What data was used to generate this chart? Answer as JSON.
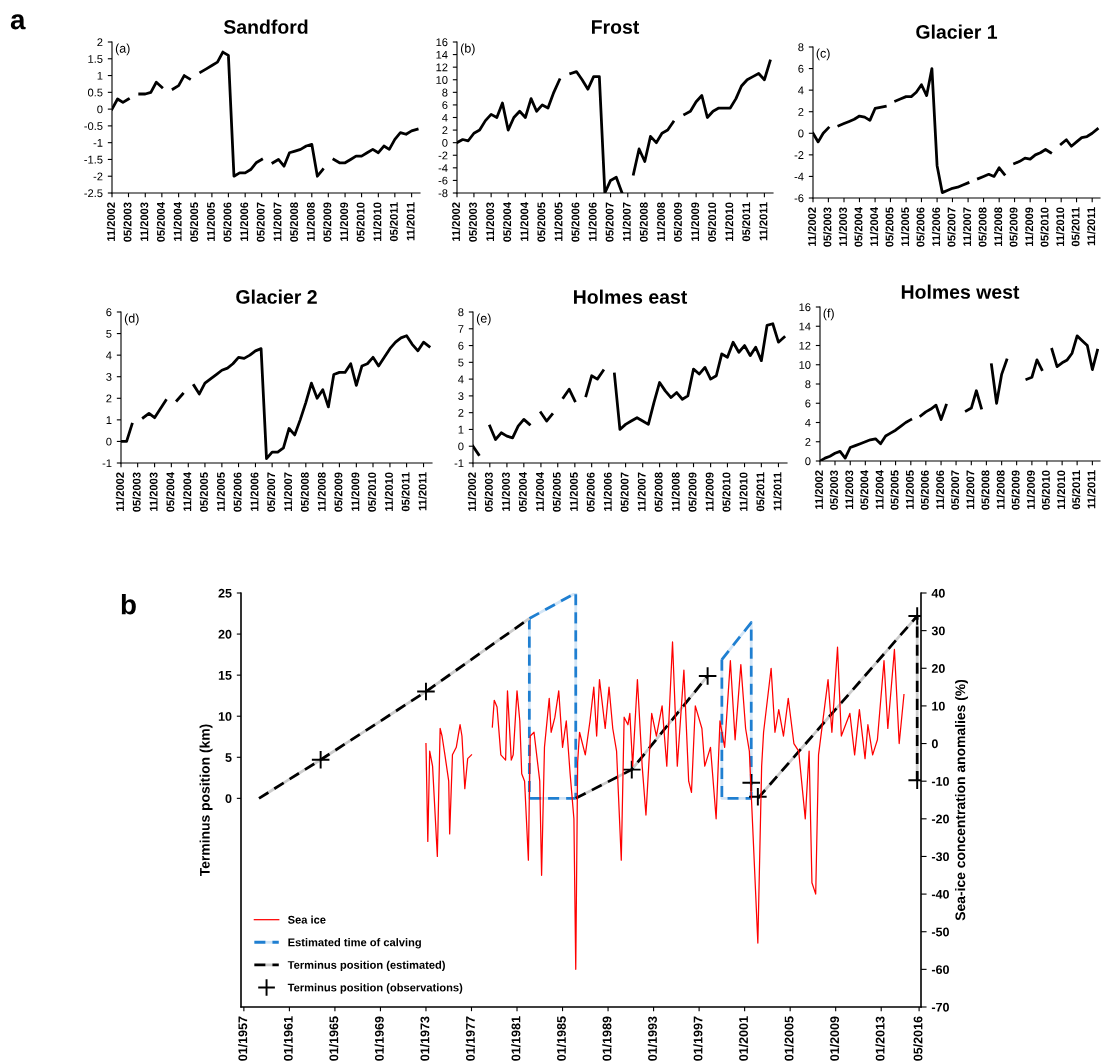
{
  "chart_data": [
    {
      "type": "line",
      "title": "Sandford",
      "annotations": [
        "(a)",
        "a"
      ],
      "xlim": [
        "2002-11",
        "2012-02"
      ],
      "ylim": [
        -2.5,
        2
      ],
      "yticks": [
        -2.5,
        -2,
        -1.5,
        -1,
        -0.5,
        0,
        0.5,
        1,
        1.5,
        2
      ],
      "xticks": [
        {
          "value": "2002-11",
          "label": "11/2002"
        },
        {
          "value": "2003-05",
          "label": "05/2003"
        },
        {
          "value": "2003-11",
          "label": "11/2003"
        },
        {
          "value": "2004-05",
          "label": "05/2004"
        },
        {
          "value": "2004-11",
          "label": "11/2004"
        },
        {
          "value": "2005-05",
          "label": "05/2005"
        },
        {
          "value": "2005-11",
          "label": "11/2005"
        },
        {
          "value": "2006-05",
          "label": "05/2006"
        },
        {
          "value": "2006-11",
          "label": "11/2006"
        },
        {
          "value": "2007-05",
          "label": "05/2007"
        },
        {
          "value": "2007-11",
          "label": "11/2007"
        },
        {
          "value": "2008-05",
          "label": "05/2008"
        },
        {
          "value": "2008-11",
          "label": "11/2008"
        },
        {
          "value": "2009-05",
          "label": "05/2009"
        },
        {
          "value": "2009-11",
          "label": "11/2009"
        },
        {
          "value": "2010-05",
          "label": "05/2010"
        },
        {
          "value": "2010-11",
          "label": "11/2010"
        },
        {
          "value": "2011-05",
          "label": "05/2011"
        },
        {
          "value": "2011-11",
          "label": "11/2011"
        }
      ],
      "x": [
        "2002-11",
        "2003-01",
        "2003-03",
        "2003-05",
        "2003-07",
        "2003-09",
        "2003-11",
        "2004-01",
        "2004-03",
        "2004-05",
        "2004-07",
        "2004-09",
        "2004-11",
        "2005-01",
        "2005-03",
        "2005-05",
        "2005-07",
        "2005-09",
        "2005-11",
        "2006-01",
        "2006-03",
        "2006-05",
        "2006-07",
        "2006-09",
        "2006-11",
        "2007-01",
        "2007-03",
        "2007-05",
        "2007-07",
        "2007-09",
        "2007-11",
        "2008-01",
        "2008-03",
        "2008-05",
        "2008-07",
        "2008-09",
        "2008-11",
        "2009-01",
        "2009-03",
        "2009-05",
        "2009-07",
        "2009-09",
        "2009-11",
        "2010-01",
        "2010-03",
        "2010-05",
        "2010-07",
        "2010-09",
        "2010-11",
        "2011-01",
        "2011-03",
        "2011-05",
        "2011-07",
        "2011-09",
        "2011-11",
        "2012-01"
      ],
      "series": [
        {
          "color": "#000000",
          "values": [
            0,
            0.3,
            0.2,
            0.3,
            null,
            0.45,
            0.45,
            0.5,
            0.8,
            0.65,
            null,
            0.6,
            0.7,
            1.0,
            0.9,
            null,
            1.1,
            1.2,
            1.3,
            1.4,
            1.7,
            1.6,
            -2.0,
            -1.9,
            -1.9,
            -1.8,
            -1.6,
            -1.5,
            null,
            -1.6,
            -1.5,
            -1.7,
            -1.3,
            -1.25,
            -1.2,
            -1.1,
            -1.05,
            -2.0,
            -1.8,
            null,
            -1.5,
            -1.6,
            -1.6,
            -1.5,
            -1.4,
            -1.4,
            -1.3,
            -1.2,
            -1.3,
            -1.1,
            -1.2,
            -0.9,
            -0.7,
            -0.75,
            -0.65,
            -0.6
          ]
        }
      ]
    },
    {
      "type": "line",
      "title": "Frost",
      "annotations": [
        "(b)"
      ],
      "xlim": [
        "2002-11",
        "2012-02"
      ],
      "ylim": [
        -8,
        16
      ],
      "yticks": [
        -8,
        -6,
        -4,
        -2,
        0,
        2,
        4,
        6,
        8,
        10,
        12,
        14,
        16
      ],
      "xticks": [
        {
          "value": "2002-11",
          "label": "11/2002"
        },
        {
          "value": "2003-05",
          "label": "05/2003"
        },
        {
          "value": "2003-11",
          "label": "11/2003"
        },
        {
          "value": "2004-05",
          "label": "05/2004"
        },
        {
          "value": "2004-11",
          "label": "11/2004"
        },
        {
          "value": "2005-05",
          "label": "05/2005"
        },
        {
          "value": "2005-11",
          "label": "11/2005"
        },
        {
          "value": "2006-05",
          "label": "05/2006"
        },
        {
          "value": "2006-11",
          "label": "11/2006"
        },
        {
          "value": "2007-05",
          "label": "05/2007"
        },
        {
          "value": "2007-11",
          "label": "11/2007"
        },
        {
          "value": "2008-05",
          "label": "05/2008"
        },
        {
          "value": "2008-11",
          "label": "11/2008"
        },
        {
          "value": "2009-05",
          "label": "05/2009"
        },
        {
          "value": "2009-11",
          "label": "11/2009"
        },
        {
          "value": "2010-05",
          "label": "05/2010"
        },
        {
          "value": "2010-11",
          "label": "11/2010"
        },
        {
          "value": "2011-05",
          "label": "05/2011"
        },
        {
          "value": "2011-11",
          "label": "11/2011"
        }
      ],
      "x": [
        "2002-11",
        "2003-01",
        "2003-03",
        "2003-05",
        "2003-07",
        "2003-09",
        "2003-11",
        "2004-01",
        "2004-03",
        "2004-05",
        "2004-07",
        "2004-09",
        "2004-11",
        "2005-01",
        "2005-03",
        "2005-05",
        "2005-07",
        "2005-09",
        "2005-11",
        "2006-01",
        "2006-03",
        "2006-05",
        "2006-07",
        "2006-09",
        "2006-11",
        "2007-01",
        "2007-03",
        "2007-05",
        "2007-07",
        "2007-09",
        "2007-11",
        "2008-01",
        "2008-03",
        "2008-05",
        "2008-07",
        "2008-09",
        "2008-11",
        "2009-01",
        "2009-03",
        "2009-05",
        "2009-07",
        "2009-09",
        "2009-11",
        "2010-01",
        "2010-03",
        "2010-05",
        "2010-07",
        "2010-09",
        "2010-11",
        "2011-01",
        "2011-03",
        "2011-05",
        "2011-07",
        "2011-09",
        "2011-11",
        "2012-01"
      ],
      "series": [
        {
          "color": "#000000",
          "values": [
            0,
            0.5,
            0.3,
            1.5,
            2,
            3.5,
            4.5,
            4,
            6.3,
            2,
            4,
            5,
            4,
            7,
            5,
            6,
            5.5,
            8,
            10,
            null,
            11,
            11.3,
            10,
            8.5,
            10.5,
            10.5,
            -8,
            -6,
            -5.5,
            -8,
            null,
            -5,
            -1,
            -3,
            1,
            0,
            1.5,
            2,
            3.3,
            null,
            4.5,
            5,
            6.5,
            7.5,
            4,
            5,
            5.5,
            5.5,
            5.5,
            7,
            9,
            10,
            10.5,
            11,
            10,
            13
          ]
        }
      ]
    },
    {
      "type": "line",
      "title": "Glacier 1",
      "annotations": [
        "(c)"
      ],
      "xlim": [
        "2002-11",
        "2012-02"
      ],
      "ylim": [
        -6,
        8
      ],
      "yticks": [
        -6,
        -4,
        -2,
        0,
        2,
        4,
        6,
        8
      ],
      "xticks": [
        {
          "value": "2002-11",
          "label": "11/2002"
        },
        {
          "value": "2003-05",
          "label": "05/2003"
        },
        {
          "value": "2003-11",
          "label": "11/2003"
        },
        {
          "value": "2004-05",
          "label": "05/2004"
        },
        {
          "value": "2004-11",
          "label": "11/2004"
        },
        {
          "value": "2005-05",
          "label": "05/2005"
        },
        {
          "value": "2005-11",
          "label": "11/2005"
        },
        {
          "value": "2006-05",
          "label": "05/2006"
        },
        {
          "value": "2006-11",
          "label": "11/2006"
        },
        {
          "value": "2007-05",
          "label": "05/2007"
        },
        {
          "value": "2007-11",
          "label": "11/2007"
        },
        {
          "value": "2008-05",
          "label": "05/2008"
        },
        {
          "value": "2008-11",
          "label": "11/2008"
        },
        {
          "value": "2009-05",
          "label": "05/2009"
        },
        {
          "value": "2009-11",
          "label": "11/2009"
        },
        {
          "value": "2010-05",
          "label": "05/2010"
        },
        {
          "value": "2010-11",
          "label": "11/2010"
        },
        {
          "value": "2011-05",
          "label": "05/2011"
        },
        {
          "value": "2011-11",
          "label": "11/2011"
        }
      ],
      "x": [
        "2002-11",
        "2003-01",
        "2003-03",
        "2003-05",
        "2003-07",
        "2003-09",
        "2003-11",
        "2004-01",
        "2004-03",
        "2004-05",
        "2004-07",
        "2004-09",
        "2004-11",
        "2005-01",
        "2005-03",
        "2005-05",
        "2005-07",
        "2005-09",
        "2005-11",
        "2006-01",
        "2006-03",
        "2006-05",
        "2006-07",
        "2006-09",
        "2006-11",
        "2007-01",
        "2007-03",
        "2007-05",
        "2007-07",
        "2007-09",
        "2007-11",
        "2008-01",
        "2008-03",
        "2008-05",
        "2008-07",
        "2008-09",
        "2008-11",
        "2009-01",
        "2009-03",
        "2009-05",
        "2009-07",
        "2009-09",
        "2009-11",
        "2010-01",
        "2010-03",
        "2010-05",
        "2010-07",
        "2010-09",
        "2010-11",
        "2011-01",
        "2011-03",
        "2011-05",
        "2011-07",
        "2011-09",
        "2011-11",
        "2012-01"
      ],
      "series": [
        {
          "color": "#000000",
          "values": [
            0,
            -0.8,
            0,
            0.5,
            null,
            0.7,
            0.9,
            1.1,
            1.3,
            1.6,
            1.5,
            1.2,
            2.3,
            2.4,
            2.5,
            null,
            3,
            3.2,
            3.4,
            3.4,
            3.8,
            4.5,
            3.5,
            6,
            -3,
            -5.5,
            -5.3,
            -5.1,
            -5,
            -4.8,
            -4.6,
            null,
            -4.2,
            -4,
            -3.8,
            -4,
            -3.2,
            -3.8,
            null,
            -2.8,
            -2.6,
            -2.3,
            -2.4,
            -2,
            -1.8,
            -1.5,
            -1.8,
            null,
            -1,
            -0.6,
            -1.2,
            -0.8,
            -0.4,
            -0.3,
            0,
            0.4
          ]
        }
      ]
    },
    {
      "type": "line",
      "title": "Glacier 2",
      "annotations": [
        "(d)"
      ],
      "xlim": [
        "2002-11",
        "2012-02"
      ],
      "ylim": [
        -1,
        6
      ],
      "yticks": [
        -1,
        0,
        1,
        2,
        3,
        4,
        5,
        6
      ],
      "xticks": [
        {
          "value": "2002-11",
          "label": "11/2002"
        },
        {
          "value": "2003-05",
          "label": "05/2003"
        },
        {
          "value": "2003-11",
          "label": "11/2003"
        },
        {
          "value": "2004-05",
          "label": "05/2004"
        },
        {
          "value": "2004-11",
          "label": "11/2004"
        },
        {
          "value": "2005-05",
          "label": "05/2005"
        },
        {
          "value": "2005-11",
          "label": "11/2005"
        },
        {
          "value": "2006-05",
          "label": "05/2006"
        },
        {
          "value": "2006-11",
          "label": "11/2006"
        },
        {
          "value": "2007-05",
          "label": "05/2007"
        },
        {
          "value": "2007-11",
          "label": "11/2007"
        },
        {
          "value": "2008-05",
          "label": "05/2008"
        },
        {
          "value": "2008-11",
          "label": "11/2008"
        },
        {
          "value": "2009-05",
          "label": "05/2009"
        },
        {
          "value": "2009-11",
          "label": "11/2009"
        },
        {
          "value": "2010-05",
          "label": "05/2010"
        },
        {
          "value": "2010-11",
          "label": "11/2010"
        },
        {
          "value": "2011-05",
          "label": "05/2011"
        },
        {
          "value": "2011-11",
          "label": "11/2011"
        }
      ],
      "x": [
        "2002-11",
        "2003-01",
        "2003-03",
        "2003-05",
        "2003-07",
        "2003-09",
        "2003-11",
        "2004-01",
        "2004-03",
        "2004-05",
        "2004-07",
        "2004-09",
        "2004-11",
        "2005-01",
        "2005-03",
        "2005-05",
        "2005-07",
        "2005-09",
        "2005-11",
        "2006-01",
        "2006-03",
        "2006-05",
        "2006-07",
        "2006-09",
        "2006-11",
        "2007-01",
        "2007-03",
        "2007-05",
        "2007-07",
        "2007-09",
        "2007-11",
        "2008-01",
        "2008-03",
        "2008-05",
        "2008-07",
        "2008-09",
        "2008-11",
        "2009-01",
        "2009-03",
        "2009-05",
        "2009-07",
        "2009-09",
        "2009-11",
        "2010-01",
        "2010-03",
        "2010-05",
        "2010-07",
        "2010-09",
        "2010-11",
        "2011-01",
        "2011-03",
        "2011-05",
        "2011-07",
        "2011-09",
        "2011-11",
        "2012-01"
      ],
      "series": [
        {
          "color": "#000000",
          "values": [
            0,
            0,
            0.8,
            null,
            1.1,
            1.3,
            1.1,
            1.5,
            1.9,
            null,
            1.9,
            2.2,
            null,
            2.6,
            2.2,
            2.7,
            2.9,
            3.1,
            3.3,
            3.4,
            3.6,
            3.9,
            3.85,
            4,
            4.2,
            4.3,
            -0.8,
            -0.5,
            -0.5,
            -0.3,
            0.6,
            0.3,
            1,
            1.8,
            2.7,
            2,
            2.4,
            1.6,
            3.1,
            3.2,
            3.2,
            3.6,
            2.6,
            3.5,
            3.6,
            3.9,
            3.5,
            3.9,
            4.3,
            4.6,
            4.8,
            4.9,
            4.5,
            4.2,
            4.6,
            4.4
          ]
        }
      ]
    },
    {
      "type": "line",
      "title": "Holmes east",
      "annotations": [
        "(e)"
      ],
      "xlim": [
        "2002-11",
        "2012-02"
      ],
      "ylim": [
        -1,
        8
      ],
      "yticks": [
        -1,
        0,
        1,
        2,
        3,
        4,
        5,
        6,
        7,
        8
      ],
      "xticks": [
        {
          "value": "2002-11",
          "label": "11/2002"
        },
        {
          "value": "2003-05",
          "label": "05/2003"
        },
        {
          "value": "2003-11",
          "label": "11/2003"
        },
        {
          "value": "2004-05",
          "label": "05/2004"
        },
        {
          "value": "2004-11",
          "label": "11/2004"
        },
        {
          "value": "2005-05",
          "label": "05/2005"
        },
        {
          "value": "2005-11",
          "label": "11/2005"
        },
        {
          "value": "2006-05",
          "label": "05/2006"
        },
        {
          "value": "2006-11",
          "label": "11/2006"
        },
        {
          "value": "2007-05",
          "label": "05/2007"
        },
        {
          "value": "2007-11",
          "label": "11/2007"
        },
        {
          "value": "2008-05",
          "label": "05/2008"
        },
        {
          "value": "2008-11",
          "label": "11/2008"
        },
        {
          "value": "2009-05",
          "label": "05/2009"
        },
        {
          "value": "2009-11",
          "label": "11/2009"
        },
        {
          "value": "2010-05",
          "label": "05/2010"
        },
        {
          "value": "2010-11",
          "label": "11/2010"
        },
        {
          "value": "2011-05",
          "label": "05/2011"
        },
        {
          "value": "2011-11",
          "label": "11/2011"
        }
      ],
      "x": [
        "2002-11",
        "2003-01",
        "2003-03",
        "2003-05",
        "2003-07",
        "2003-09",
        "2003-11",
        "2004-01",
        "2004-03",
        "2004-05",
        "2004-07",
        "2004-09",
        "2004-11",
        "2005-01",
        "2005-03",
        "2005-05",
        "2005-07",
        "2005-09",
        "2005-11",
        "2006-01",
        "2006-03",
        "2006-05",
        "2006-07",
        "2006-09",
        "2006-11",
        "2007-01",
        "2007-03",
        "2007-05",
        "2007-07",
        "2007-09",
        "2007-11",
        "2008-01",
        "2008-03",
        "2008-05",
        "2008-07",
        "2008-09",
        "2008-11",
        "2009-01",
        "2009-03",
        "2009-05",
        "2009-07",
        "2009-09",
        "2009-11",
        "2010-01",
        "2010-03",
        "2010-05",
        "2010-07",
        "2010-09",
        "2010-11",
        "2011-01",
        "2011-03",
        "2011-05",
        "2011-07",
        "2011-09",
        "2011-11",
        "2012-01"
      ],
      "series": [
        {
          "color": "#000000",
          "values": [
            0,
            -0.5,
            null,
            1.2,
            0.4,
            0.8,
            0.6,
            0.5,
            1.2,
            1.6,
            1.3,
            null,
            2,
            1.5,
            1.9,
            null,
            2.9,
            3.4,
            2.7,
            null,
            3,
            4.2,
            4,
            4.5,
            null,
            4.3,
            1,
            1.3,
            1.5,
            1.7,
            1.5,
            1.3,
            2.6,
            3.8,
            3.3,
            2.9,
            3.2,
            2.8,
            3,
            4.6,
            4.3,
            4.7,
            4,
            4.2,
            5.5,
            5.3,
            6.2,
            5.6,
            6,
            5.4,
            5.9,
            5.1,
            7.2,
            7.3,
            6.2,
            6.5
          ]
        }
      ]
    },
    {
      "type": "line",
      "title": "Holmes west",
      "annotations": [
        "(f)"
      ],
      "xlim": [
        "2002-11",
        "2012-02"
      ],
      "ylim": [
        0,
        16
      ],
      "yticks": [
        0,
        2,
        4,
        6,
        8,
        10,
        12,
        14,
        16
      ],
      "xticks": [
        {
          "value": "2002-11",
          "label": "11/2002"
        },
        {
          "value": "2003-05",
          "label": "05/2003"
        },
        {
          "value": "2003-11",
          "label": "11/2003"
        },
        {
          "value": "2004-05",
          "label": "05/2004"
        },
        {
          "value": "2004-11",
          "label": "11/2004"
        },
        {
          "value": "2005-05",
          "label": "05/2005"
        },
        {
          "value": "2005-11",
          "label": "11/2005"
        },
        {
          "value": "2006-05",
          "label": "05/2006"
        },
        {
          "value": "2006-11",
          "label": "11/2006"
        },
        {
          "value": "2007-05",
          "label": "05/2007"
        },
        {
          "value": "2007-11",
          "label": "11/2007"
        },
        {
          "value": "2008-05",
          "label": "05/2008"
        },
        {
          "value": "2008-11",
          "label": "11/2008"
        },
        {
          "value": "2009-05",
          "label": "05/2009"
        },
        {
          "value": "2009-11",
          "label": "11/2009"
        },
        {
          "value": "2010-05",
          "label": "05/2010"
        },
        {
          "value": "2010-11",
          "label": "11/2010"
        },
        {
          "value": "2011-05",
          "label": "05/2011"
        },
        {
          "value": "2011-11",
          "label": "11/2011"
        }
      ],
      "x": [
        "2002-11",
        "2003-01",
        "2003-03",
        "2003-05",
        "2003-07",
        "2003-09",
        "2003-11",
        "2004-01",
        "2004-03",
        "2004-05",
        "2004-07",
        "2004-09",
        "2004-11",
        "2005-01",
        "2005-03",
        "2005-05",
        "2005-07",
        "2005-09",
        "2005-11",
        "2006-01",
        "2006-03",
        "2006-05",
        "2006-07",
        "2006-09",
        "2006-11",
        "2007-01",
        "2007-03",
        "2007-05",
        "2007-07",
        "2007-09",
        "2007-11",
        "2008-01",
        "2008-03",
        "2008-05",
        "2008-07",
        "2008-09",
        "2008-11",
        "2009-01",
        "2009-03",
        "2009-05",
        "2009-07",
        "2009-09",
        "2009-11",
        "2010-01",
        "2010-03",
        "2010-05",
        "2010-07",
        "2010-09",
        "2010-11",
        "2011-01",
        "2011-03",
        "2011-05",
        "2011-07",
        "2011-09",
        "2011-11",
        "2012-01"
      ],
      "series": [
        {
          "color": "#000000",
          "values": [
            0,
            0.3,
            0.5,
            0.8,
            1,
            0.3,
            1.4,
            1.6,
            1.8,
            2,
            2.2,
            2.3,
            1.8,
            2.6,
            2.9,
            3.2,
            3.6,
            4,
            4.3,
            null,
            4.7,
            5.1,
            5.4,
            5.8,
            4.3,
            5.8,
            null,
            null,
            null,
            5.2,
            5.5,
            7.3,
            5.5,
            null,
            10,
            6,
            9,
            10.5,
            null,
            null,
            null,
            8.5,
            8.7,
            10.5,
            9.5,
            null,
            11.6,
            9.8,
            10.2,
            10.5,
            11.2,
            13,
            12.5,
            12,
            9.5,
            11.5
          ]
        }
      ]
    },
    {
      "type": "line",
      "annotations": [
        "b"
      ],
      "ylabel": "Terminus position (km)",
      "y2label": "Sea-ice concentration anomalies (%)",
      "legend": "bottom left",
      "xlim": [
        "1956-10",
        "2016-07"
      ],
      "ylim": [
        -25.4,
        25
      ],
      "yticks": [
        0,
        5,
        10,
        15,
        20,
        25
      ],
      "y2lim": [
        -70,
        40
      ],
      "y2ticks": [
        -70,
        -60,
        -50,
        -40,
        -30,
        -20,
        -10,
        0,
        10,
        20,
        30,
        40
      ],
      "xticks": [
        {
          "value": "1957-01",
          "label": "01/1957"
        },
        {
          "value": "1961-01",
          "label": "01/1961"
        },
        {
          "value": "1965-01",
          "label": "01/1965"
        },
        {
          "value": "1969-01",
          "label": "01/1969"
        },
        {
          "value": "1973-01",
          "label": "01/1973"
        },
        {
          "value": "1977-01",
          "label": "01/1977"
        },
        {
          "value": "1981-01",
          "label": "01/1981"
        },
        {
          "value": "1985-01",
          "label": "01/1985"
        },
        {
          "value": "1989-01",
          "label": "01/1989"
        },
        {
          "value": "1993-01",
          "label": "01/1993"
        },
        {
          "value": "1997-01",
          "label": "01/1997"
        },
        {
          "value": "2001-01",
          "label": "01/2001"
        },
        {
          "value": "2005-01",
          "label": "01/2005"
        },
        {
          "value": "2009-01",
          "label": "01/2009"
        },
        {
          "value": "2013-01",
          "label": "01/2013"
        },
        {
          "value": "2016-05",
          "label": "05/2016"
        }
      ],
      "series": [
        {
          "name": "Sea ice",
          "type": "line",
          "axis": "y2",
          "color": "#ff0000",
          "line_style": "solid",
          "x": [
            "1973-01",
            "1973-03",
            "1973-05",
            "1973-08",
            "1974-01",
            "1974-04",
            "1974-06",
            "1974-09",
            "1975-01",
            "1975-02",
            "1975-05",
            "1975-09",
            "1976-01",
            "1976-03",
            "1976-06",
            "1976-09",
            "1977-01",
            "1978-01",
            "1978-11",
            "1979-01",
            "1979-04",
            "1979-08",
            "1980-01",
            "1980-03",
            "1980-07",
            "1980-09",
            "1981-01",
            "1981-04",
            "1981-06",
            "1981-09",
            "1982-01",
            "1982-03",
            "1982-07",
            "1983-01",
            "1983-03",
            "1983-06",
            "1983-11",
            "1984-01",
            "1984-05",
            "1984-09",
            "1985-01",
            "1985-05",
            "1985-09",
            "1986-01",
            "1986-03",
            "1986-05",
            "1986-07",
            "1987-01",
            "1987-06",
            "1987-10",
            "1988-01",
            "1988-04",
            "1988-10",
            "1989-02",
            "1989-06",
            "1989-10",
            "1990-03",
            "1990-06",
            "1990-10",
            "1990-12",
            "1991-03",
            "1991-08",
            "1992-01",
            "1992-05",
            "1992-11",
            "1993-04",
            "1993-10",
            "1994-03",
            "1994-09",
            "1995-02",
            "1995-09",
            "1996-02",
            "1996-05",
            "1996-09",
            "1997-04",
            "1997-07",
            "1998-01",
            "1998-07",
            "1998-11",
            "1999-04",
            "1999-10",
            "2000-03",
            "2000-09",
            "2001-02",
            "2001-06",
            "2002-03",
            "2002-07",
            "2002-09",
            "2003-05",
            "2003-09",
            "2004-01",
            "2004-06",
            "2004-11",
            "2005-05",
            "2005-10",
            "2006-05",
            "2006-09",
            "2006-12",
            "2007-04",
            "2007-07",
            "2008-05",
            "2008-09",
            "2009-03",
            "2009-07",
            "2010-04",
            "2010-09",
            "2011-02",
            "2011-08",
            "2011-11",
            "2012-04",
            "2012-09",
            "2013-04",
            "2013-08",
            "2014-03",
            "2014-08",
            "2015-01"
          ],
          "values": [
            0,
            -26,
            -2,
            -6,
            -30,
            4,
            2,
            -3,
            -10,
            -24,
            -3,
            -1,
            5,
            2,
            -12,
            -4,
            -3,
            null,
            4.4,
            11.5,
            9.7,
            -3,
            -4.4,
            14,
            -4.4,
            -3,
            14,
            6,
            -8,
            -10,
            -31,
            2,
            3,
            -10,
            -35,
            -1,
            12,
            3,
            7,
            14,
            -1,
            6,
            -8,
            -20,
            -60,
            -5,
            3,
            -3,
            6,
            15,
            2,
            17,
            4,
            15,
            4,
            -2,
            -31,
            7,
            5,
            8,
            -6,
            17,
            -6,
            -19,
            8,
            2,
            10,
            -6,
            27,
            -6,
            19.5,
            -10,
            -13,
            10,
            4,
            -6,
            -1,
            -20,
            6,
            -1,
            22,
            1,
            21,
            4,
            -2,
            -53,
            -6,
            3,
            20,
            3,
            9,
            2,
            12,
            0,
            -2,
            -20,
            -2,
            -37,
            -40,
            -3,
            17,
            3,
            25.6,
            2,
            8,
            -3,
            9,
            -4,
            5,
            -3,
            1,
            22,
            4,
            25,
            0,
            13
          ]
        },
        {
          "name": "Estimated time of calving",
          "type": "line",
          "color": "#1f7fd1",
          "line_style": "dashed",
          "x": [
            "1982-02",
            "1986-03",
            "1986-03",
            "1984-01",
            "1982-02",
            "1982-02",
            "1986-03",
            "1990-01",
            "1999-01",
            "2001-08",
            "2001-08",
            "2000-05",
            "1999-01",
            "1999-01",
            "2001-08"
          ],
          "values": [
            21.9,
            25,
            0,
            null,
            21.9,
            0,
            0,
            null,
            16.9,
            21.4,
            0,
            null,
            16.9,
            0,
            0
          ]
        },
        {
          "name": "Terminus position (estimated)",
          "type": "line",
          "color": "#000000",
          "line_style": "dashed",
          "x": [
            "1958-05",
            "1963-10",
            "1973-01",
            "1982-02",
            "1984-01",
            "1986-03",
            "1991-02",
            "1997-10",
            "2000-01",
            "2002-03",
            "2016-03",
            "2016-03"
          ],
          "values": [
            0,
            4.7,
            13,
            21.9,
            null,
            0,
            3.5,
            14.9,
            null,
            0,
            22.2,
            2.2
          ]
        },
        {
          "name": "Terminus position (observations)",
          "type": "scatter",
          "color": "#000000",
          "marker": "cross",
          "x": [
            "1963-10",
            "1973-01",
            "1991-02",
            "1997-10",
            "2001-08",
            "2002-03",
            "2016-03",
            "2016-03"
          ],
          "values": [
            4.7,
            13,
            3.5,
            14.9,
            1.9,
            0.2,
            22.2,
            2.2
          ]
        }
      ]
    }
  ]
}
